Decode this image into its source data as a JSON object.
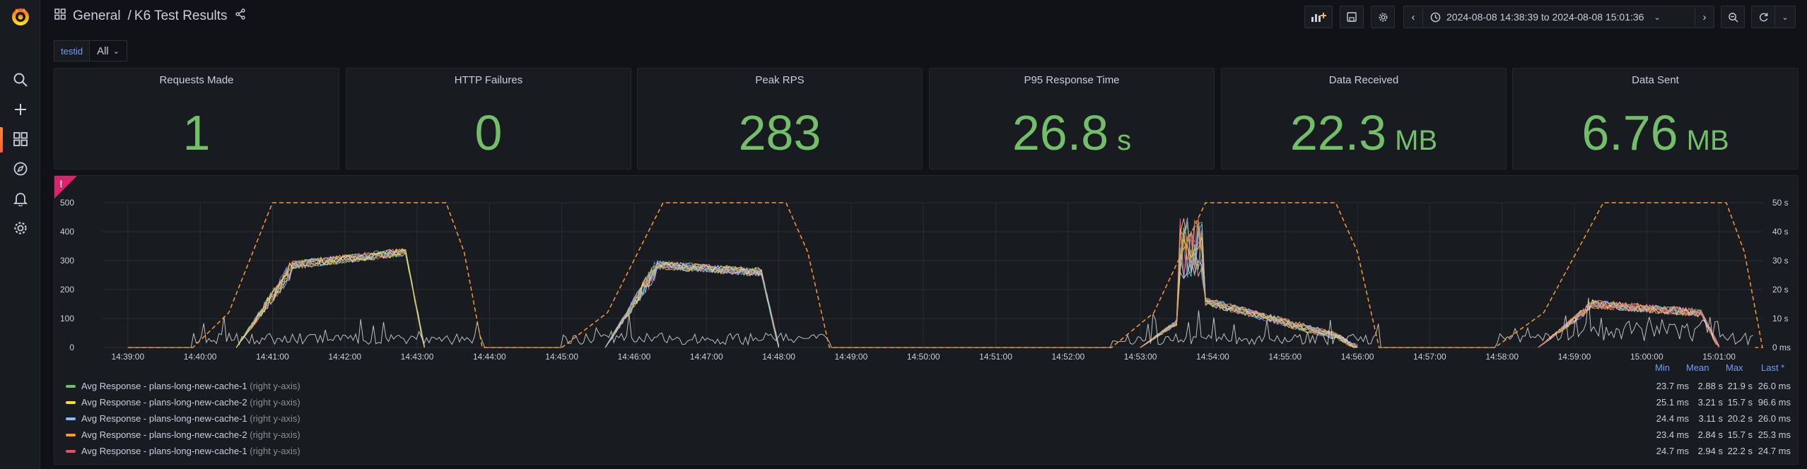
{
  "header": {
    "folder": "General",
    "separator": "/",
    "dashboard_title": "K6 Test Results",
    "time_range": "2024-08-08 14:38:39 to 2024-08-08 15:01:36"
  },
  "variables": {
    "label": "testid",
    "value": "All"
  },
  "stats": [
    {
      "title": "Requests Made",
      "value": "1",
      "unit": ""
    },
    {
      "title": "HTTP Failures",
      "value": "0",
      "unit": ""
    },
    {
      "title": "Peak RPS",
      "value": "283",
      "unit": ""
    },
    {
      "title": "P95 Response Time",
      "value": "26.8",
      "unit": "s"
    },
    {
      "title": "Data Received",
      "value": "22.3",
      "unit": "MB"
    },
    {
      "title": "Data Sent",
      "value": "6.76",
      "unit": "MB"
    }
  ],
  "colors": {
    "stat_green": "#73bf69",
    "accent_blue": "#6e9fff",
    "alert_pink": "#e0226e",
    "vus_orange": "#ff9830",
    "rps_white": "#dcdcdc"
  },
  "chart_data": {
    "type": "line",
    "left_axis": {
      "ticks": [
        "0",
        "100",
        "200",
        "300",
        "400",
        "500"
      ],
      "ylim": [
        0,
        500
      ]
    },
    "right_axis": {
      "ticks": [
        "0 ms",
        "10 s",
        "20 s",
        "30 s",
        "40 s",
        "50 s"
      ],
      "ylim": [
        0,
        50
      ]
    },
    "x_ticks": [
      "14:39:00",
      "14:40:00",
      "14:41:00",
      "14:42:00",
      "14:43:00",
      "14:44:00",
      "14:45:00",
      "14:46:00",
      "14:47:00",
      "14:48:00",
      "14:49:00",
      "14:50:00",
      "14:51:00",
      "14:52:00",
      "14:53:00",
      "14:54:00",
      "14:55:00",
      "14:56:00",
      "14:57:00",
      "14:58:00",
      "14:59:00",
      "15:00:00",
      "15:01:00"
    ],
    "vus_runs": [
      {
        "start": 14.65,
        "ramp_end": 14.7,
        "plateau_end": 14.71,
        "end": 14.72
      }
    ],
    "grid": true,
    "legend_placement": "bottom",
    "legend_columns": [
      "Min",
      "Mean",
      "Max",
      "Last *"
    ],
    "series": [
      {
        "name": "Avg Response - plans-long-new-cache-1",
        "axis": "(right y-axis)",
        "color": "#73bf69",
        "min": "23.7 ms",
        "mean": "2.88 s",
        "max": "21.9 s",
        "last": "26.0 ms"
      },
      {
        "name": "Avg Response - plans-long-new-cache-2",
        "axis": "(right y-axis)",
        "color": "#fade2a",
        "min": "25.1 ms",
        "mean": "3.21 s",
        "max": "15.7 s",
        "last": "96.6 ms"
      },
      {
        "name": "Avg Response - plans-long-new-cache-1",
        "axis": "(right y-axis)",
        "color": "#8ab8ff",
        "min": "24.4 ms",
        "mean": "3.11 s",
        "max": "20.2 s",
        "last": "26.0 ms"
      },
      {
        "name": "Avg Response - plans-long-new-cache-2",
        "axis": "(right y-axis)",
        "color": "#ff9830",
        "min": "23.4 ms",
        "mean": "2.84 s",
        "max": "15.7 s",
        "last": "25.3 ms"
      },
      {
        "name": "Avg Response - plans-long-new-cache-1",
        "axis": "(right y-axis)",
        "color": "#f2495c",
        "min": "24.7 ms",
        "mean": "2.94 s",
        "max": "22.2 s",
        "last": "24.7 ms"
      }
    ]
  }
}
